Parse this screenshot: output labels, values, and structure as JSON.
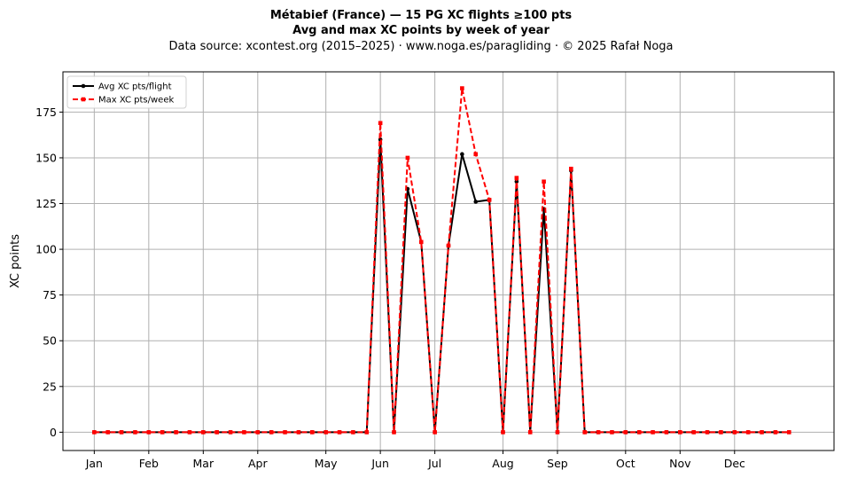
{
  "chart_data": {
    "type": "line",
    "title_line1": "Métabief (France)  —  15 PG XC flights ≥100 pts",
    "title_line2": "Avg and max XC points by week of year",
    "subtitle": "Data source: xcontest.org (2015–2025)  ·  www.noga.es/paragliding  ·  © 2025 Rafał Noga",
    "xlabel": "",
    "ylabel": "XC points",
    "ylim": [
      -10,
      197
    ],
    "yticks": [
      0,
      25,
      50,
      75,
      100,
      125,
      150,
      175
    ],
    "x_range_weeks": [
      1,
      53
    ],
    "month_ticks": [
      {
        "label": "Jan",
        "week": 1
      },
      {
        "label": "Feb",
        "week": 5
      },
      {
        "label": "Mar",
        "week": 9
      },
      {
        "label": "Apr",
        "week": 13
      },
      {
        "label": "May",
        "week": 18
      },
      {
        "label": "Jun",
        "week": 22
      },
      {
        "label": "Jul",
        "week": 26
      },
      {
        "label": "Aug",
        "week": 31
      },
      {
        "label": "Sep",
        "week": 35
      },
      {
        "label": "Oct",
        "week": 40
      },
      {
        "label": "Nov",
        "week": 44
      },
      {
        "label": "Dec",
        "week": 48
      }
    ],
    "grid": true,
    "legend_position": "top-left",
    "x": [
      1,
      2,
      3,
      4,
      5,
      6,
      7,
      8,
      9,
      10,
      11,
      12,
      13,
      14,
      15,
      16,
      17,
      18,
      19,
      20,
      21,
      22,
      23,
      24,
      25,
      26,
      27,
      28,
      29,
      30,
      31,
      32,
      33,
      34,
      35,
      36,
      37,
      38,
      39,
      40,
      41,
      42,
      43,
      44,
      45,
      46,
      47,
      48,
      49,
      50,
      51,
      52
    ],
    "series": [
      {
        "name": "Avg XC pts/flight",
        "color": "#000000",
        "style": "solid",
        "marker": "circle",
        "values": [
          0,
          0,
          0,
          0,
          0,
          0,
          0,
          0,
          0,
          0,
          0,
          0,
          0,
          0,
          0,
          0,
          0,
          0,
          0,
          0,
          0,
          160,
          0,
          133,
          104,
          0,
          102,
          152,
          126,
          127,
          0,
          137,
          0,
          122,
          0,
          143,
          0,
          0,
          0,
          0,
          0,
          0,
          0,
          0,
          0,
          0,
          0,
          0,
          0,
          0,
          0,
          0
        ]
      },
      {
        "name": "Max XC pts/week",
        "color": "#ff0000",
        "style": "dashed",
        "marker": "square",
        "values": [
          0,
          0,
          0,
          0,
          0,
          0,
          0,
          0,
          0,
          0,
          0,
          0,
          0,
          0,
          0,
          0,
          0,
          0,
          0,
          0,
          0,
          169,
          0,
          150,
          104,
          0,
          102,
          188,
          152,
          127,
          0,
          139,
          0,
          137,
          0,
          144,
          0,
          0,
          0,
          0,
          0,
          0,
          0,
          0,
          0,
          0,
          0,
          0,
          0,
          0,
          0,
          0
        ]
      }
    ]
  }
}
